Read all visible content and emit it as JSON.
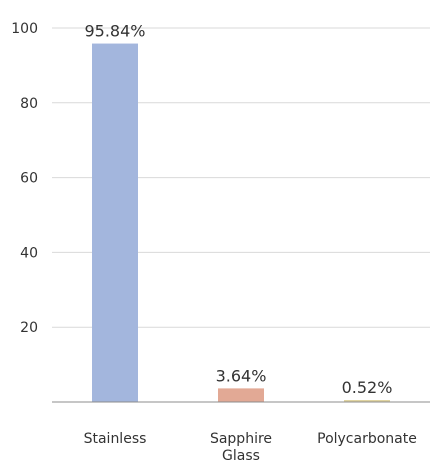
{
  "chart_data": {
    "type": "bar",
    "categories": [
      "Stainless",
      "Sapphire Glass",
      "Polycarbonate"
    ],
    "category_label_lines": [
      [
        "Stainless"
      ],
      [
        "Sapphire",
        "Glass"
      ],
      [
        "Polycarbonate"
      ]
    ],
    "values": [
      95.84,
      3.64,
      0.52
    ],
    "data_labels": [
      "95.84%",
      "3.64%",
      "0.52%"
    ],
    "colors": [
      "#a3b6dd",
      "#e2a995",
      "#dfd29c"
    ],
    "yticks": [
      20,
      40,
      60,
      80,
      100
    ],
    "ylim": [
      0,
      100
    ],
    "grid": true,
    "legend": false,
    "title": "",
    "xlabel": "",
    "ylabel": ""
  }
}
